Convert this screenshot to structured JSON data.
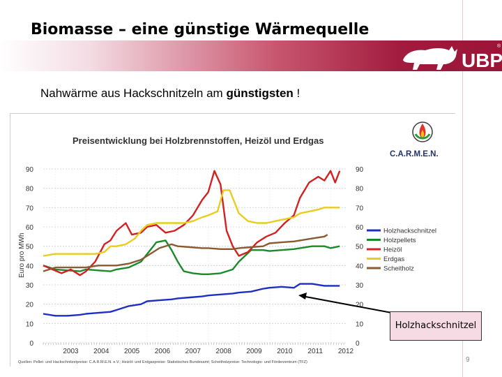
{
  "slide": {
    "title": "Biomasse – eine günstige Wärmequelle",
    "subtitle_normal": "Nahwärme aus Hackschnitzeln am ",
    "subtitle_bold": "günstigsten",
    "subtitle_end": " !",
    "logo_text": "UBP",
    "callout_label": "Holzhackschnitzel",
    "page_number": "9",
    "colors": {
      "band_start": "#f3dce3",
      "band_end": "#9a1538",
      "callout_bg": "#f6dbe5"
    }
  },
  "chart_data": {
    "type": "line",
    "title": "Preisentwicklung bei Holzbrennstoffen, Heizöl und Erdgas",
    "ylabel": "Euro pro MWh",
    "xlabel": "",
    "ylim": [
      0,
      90
    ],
    "xlim": [
      2002.6,
      2012.5
    ],
    "y_ticks": [
      0,
      10,
      20,
      30,
      40,
      50,
      60,
      70,
      80,
      90
    ],
    "x_ticks": [
      "2003",
      "2004",
      "2005",
      "2006",
      "2007",
      "2008",
      "2009",
      "2010",
      "2011",
      "2012"
    ],
    "grid": true,
    "legend_position": "right",
    "logo_text": "C.A.R.M.E.N.",
    "source": "Quellen: Pellet- und Hackschnitzelpreise: C.A.R.M.E.N. e.V.; Heizöl- und Erdgaspreise: Statistisches Bundesamt; Scheitholzpreise: Technologie- und Förderzentrum (TFZ)",
    "series": [
      {
        "name": "Holzhackschnitzel",
        "color": "#1f2fbf",
        "x": [
          2002.6,
          2003.0,
          2003.4,
          2003.8,
          2004.0,
          2004.4,
          2004.8,
          2005.0,
          2005.4,
          2005.8,
          2006.0,
          2006.4,
          2006.8,
          2007.0,
          2007.4,
          2007.8,
          2008.0,
          2008.4,
          2008.8,
          2009.0,
          2009.4,
          2009.8,
          2010.0,
          2010.4,
          2010.8,
          2011.0,
          2011.4,
          2011.8,
          2012.0,
          2012.3
        ],
        "y": [
          15,
          14,
          14,
          14.5,
          15,
          15.5,
          16,
          17,
          19,
          20,
          21.5,
          22,
          22.5,
          23,
          23.5,
          24,
          24.5,
          25,
          25.5,
          26,
          26.5,
          28,
          28.5,
          29,
          28.5,
          30.5,
          30.5,
          29.5,
          29.5,
          29.5
        ]
      },
      {
        "name": "Holzpellets",
        "color": "#1a8a2a",
        "x": [
          2002.6,
          2003.0,
          2003.4,
          2003.8,
          2004.0,
          2004.4,
          2004.8,
          2005.0,
          2005.4,
          2005.8,
          2006.0,
          2006.3,
          2006.6,
          2006.8,
          2007.0,
          2007.2,
          2007.5,
          2007.8,
          2008.0,
          2008.4,
          2008.8,
          2009.0,
          2009.4,
          2009.8,
          2010.0,
          2010.4,
          2010.8,
          2011.0,
          2011.4,
          2011.8,
          2012.0,
          2012.3
        ],
        "y": [
          40,
          38,
          37.5,
          37,
          38,
          37.5,
          37,
          38,
          39,
          42,
          46,
          52,
          53,
          48,
          42,
          37,
          36,
          35.5,
          35.5,
          36,
          38,
          42,
          48,
          48,
          47.5,
          48,
          48.5,
          49,
          50,
          50,
          49,
          50
        ]
      },
      {
        "name": "Heizöl",
        "color": "#d42020",
        "x": [
          2002.6,
          2002.9,
          2003.2,
          2003.5,
          2003.8,
          2004.0,
          2004.3,
          2004.6,
          2004.8,
          2005.0,
          2005.3,
          2005.5,
          2005.8,
          2006.0,
          2006.3,
          2006.6,
          2006.9,
          2007.2,
          2007.5,
          2007.8,
          2008.0,
          2008.2,
          2008.4,
          2008.5,
          2008.6,
          2008.8,
          2009.0,
          2009.3,
          2009.6,
          2009.9,
          2010.2,
          2010.5,
          2010.8,
          2011.0,
          2011.3,
          2011.6,
          2011.8,
          2012.0,
          2012.15,
          2012.3
        ],
        "y": [
          40,
          38,
          36,
          38,
          35,
          37,
          42,
          51,
          53,
          58,
          62,
          56,
          57,
          60,
          61,
          57,
          58,
          61,
          66,
          74,
          78,
          89,
          82,
          70,
          58,
          50,
          45,
          47,
          52,
          55,
          57,
          62,
          66,
          75,
          83,
          86,
          84,
          89,
          83,
          89
        ]
      },
      {
        "name": "Erdgas",
        "color": "#e8cc20",
        "x": [
          2002.6,
          2003.0,
          2003.4,
          2003.8,
          2004.0,
          2004.3,
          2004.6,
          2004.8,
          2005.0,
          2005.3,
          2005.6,
          2005.8,
          2006.0,
          2006.3,
          2006.6,
          2006.9,
          2007.2,
          2007.5,
          2007.8,
          2008.0,
          2008.3,
          2008.5,
          2008.7,
          2009.0,
          2009.3,
          2009.6,
          2009.9,
          2010.2,
          2010.5,
          2010.8,
          2011.0,
          2011.3,
          2011.6,
          2011.8,
          2012.0,
          2012.3
        ],
        "y": [
          45,
          46,
          46,
          46,
          46,
          46,
          47,
          50,
          50,
          51,
          54,
          58,
          61,
          62,
          62,
          62,
          62,
          63,
          65,
          66,
          68,
          79,
          79,
          67,
          63,
          62,
          62,
          63,
          64,
          65,
          67,
          68,
          69,
          70,
          70,
          70
        ]
      },
      {
        "name": "Scheitholz",
        "color": "#8a5a30",
        "x": [
          2002.6,
          2003.0,
          2003.4,
          2003.8,
          2004.0,
          2004.4,
          2004.8,
          2005.0,
          2005.4,
          2005.8,
          2006.0,
          2006.4,
          2006.8,
          2007.0,
          2007.4,
          2007.8,
          2008.0,
          2008.4,
          2008.8,
          2009.0,
          2009.4,
          2009.8,
          2010.0,
          2010.4,
          2010.8,
          2011.0,
          2011.4,
          2011.8,
          2011.9
        ],
        "y": [
          37,
          39,
          39,
          39,
          39,
          40,
          40,
          40,
          41,
          43,
          45,
          49,
          51,
          50,
          49.5,
          49,
          49,
          48.5,
          48.5,
          49,
          49.5,
          50,
          51.5,
          52,
          52.5,
          53,
          54,
          55,
          56
        ]
      }
    ]
  }
}
